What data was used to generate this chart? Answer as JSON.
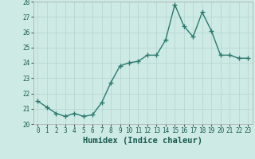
{
  "x": [
    0,
    1,
    2,
    3,
    4,
    5,
    6,
    7,
    8,
    9,
    10,
    11,
    12,
    13,
    14,
    15,
    16,
    17,
    18,
    19,
    20,
    21,
    22,
    23
  ],
  "y": [
    21.5,
    21.1,
    20.7,
    20.5,
    20.7,
    20.5,
    20.6,
    21.4,
    22.7,
    23.8,
    24.0,
    24.1,
    24.5,
    24.5,
    25.5,
    27.8,
    26.4,
    25.7,
    27.3,
    26.1,
    24.5,
    24.5,
    24.3,
    24.3
  ],
  "line_color": "#2d7a6e",
  "marker": "+",
  "markersize": 4,
  "linewidth": 1.0,
  "xlabel": "Humidex (Indice chaleur)",
  "ylim": [
    20,
    28
  ],
  "xlim": [
    -0.5,
    23.5
  ],
  "yticks": [
    20,
    21,
    22,
    23,
    24,
    25,
    26,
    27,
    28
  ],
  "xticks": [
    0,
    1,
    2,
    3,
    4,
    5,
    6,
    7,
    8,
    9,
    10,
    11,
    12,
    13,
    14,
    15,
    16,
    17,
    18,
    19,
    20,
    21,
    22,
    23
  ],
  "bg_color": "#cdeae5",
  "grid_color": "#b8d8d4",
  "tick_fontsize": 5.5,
  "xlabel_fontsize": 7.5
}
